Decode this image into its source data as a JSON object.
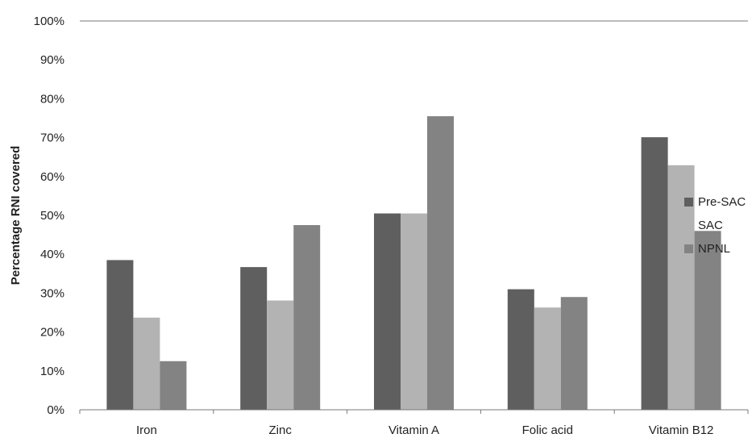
{
  "chart_data": {
    "type": "bar",
    "title": "",
    "xlabel": "",
    "ylabel": "Percentage RNI covered",
    "ylim": [
      0,
      100
    ],
    "y_ticks": [
      "0%",
      "10%",
      "20%",
      "30%",
      "40%",
      "50%",
      "60%",
      "70%",
      "80%",
      "90%",
      "100%"
    ],
    "grid": false,
    "legend_position": "right",
    "categories": [
      "Iron",
      "Zinc",
      "Vitamin A",
      "Folic acid",
      "Vitamin B12"
    ],
    "series": [
      {
        "name": "Pre-SAC",
        "color": "#5f5f5f",
        "values": [
          38.5,
          36.7,
          50.5,
          31.0,
          70.1
        ]
      },
      {
        "name": "SAC",
        "color": "#b3b3b3",
        "values": [
          23.7,
          28.1,
          50.5,
          26.3,
          62.9
        ]
      },
      {
        "name": "NPNL",
        "color": "#838383",
        "values": [
          12.5,
          47.5,
          75.5,
          29.0,
          46.0
        ]
      }
    ]
  }
}
